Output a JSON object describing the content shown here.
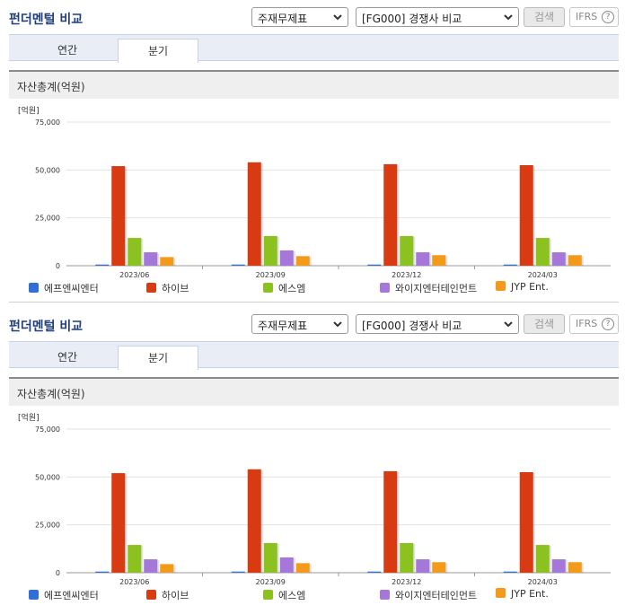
{
  "panels": [
    {
      "title": "펀더멘털 비교",
      "select_1": "주재무제표",
      "select_2": "[FG000] 경쟁사 비교",
      "search_button": "검색",
      "ifrs_button": "IFRS",
      "help_icon_label": "?",
      "tabs": [
        "연간",
        "분기"
      ],
      "active_tab": "분기",
      "section_title": "자산총계(억원)"
    },
    {
      "title": "펀더멘털 비교",
      "select_1": "주재무제표",
      "select_2": "[FG000] 경쟁사 비교",
      "search_button": "검색",
      "ifrs_button": "IFRS",
      "help_icon_label": "?",
      "tabs": [
        "연간",
        "분기"
      ],
      "active_tab": "분기",
      "section_title": "자산총계(억원)"
    }
  ],
  "colors": {
    "title": "#1f3f7d",
    "tabbar": "#e9eef6"
  },
  "chart_data": [
    {
      "type": "bar",
      "unit_label": "[억원]",
      "categories": [
        "2023/06",
        "2023/09",
        "2023/12",
        "2024/03"
      ],
      "ylim": [
        0,
        75000
      ],
      "yticks": [
        "0",
        "25,000",
        "50,000",
        "75,000"
      ],
      "ytick_values": [
        0,
        25000,
        50000,
        75000
      ],
      "grid": true,
      "legend_position": "bottom",
      "series": [
        {
          "name": "에프엔씨엔터",
          "color": "#2f6fd6",
          "values": [
            600,
            600,
            600,
            600
          ]
        },
        {
          "name": "하이브",
          "color": "#d83b12",
          "values": [
            52000,
            54000,
            53000,
            52500
          ]
        },
        {
          "name": "에스엠",
          "color": "#8cc21f",
          "values": [
            14500,
            15500,
            15500,
            14500
          ]
        },
        {
          "name": "와이지엔터테인먼트",
          "color": "#a577d9",
          "values": [
            7000,
            8000,
            7000,
            7000
          ]
        },
        {
          "name": "JYP Ent.",
          "color": "#f39a1b",
          "values": [
            4500,
            5000,
            5500,
            5500
          ]
        }
      ]
    },
    {
      "type": "bar",
      "unit_label": "[억원]",
      "categories": [
        "2023/06",
        "2023/09",
        "2023/12",
        "2024/03"
      ],
      "ylim": [
        0,
        75000
      ],
      "yticks": [
        "0",
        "25,000",
        "50,000",
        "75,000"
      ],
      "ytick_values": [
        0,
        25000,
        50000,
        75000
      ],
      "grid": true,
      "legend_position": "bottom",
      "series": [
        {
          "name": "에프엔씨엔터",
          "color": "#2f6fd6",
          "values": [
            600,
            600,
            600,
            600
          ]
        },
        {
          "name": "하이브",
          "color": "#d83b12",
          "values": [
            52000,
            54000,
            53000,
            52500
          ]
        },
        {
          "name": "에스엠",
          "color": "#8cc21f",
          "values": [
            14500,
            15500,
            15500,
            14500
          ]
        },
        {
          "name": "와이지엔터테인먼트",
          "color": "#a577d9",
          "values": [
            7000,
            8000,
            7000,
            7000
          ]
        },
        {
          "name": "JYP Ent.",
          "color": "#f39a1b",
          "values": [
            4500,
            5000,
            5500,
            5500
          ]
        }
      ]
    }
  ]
}
